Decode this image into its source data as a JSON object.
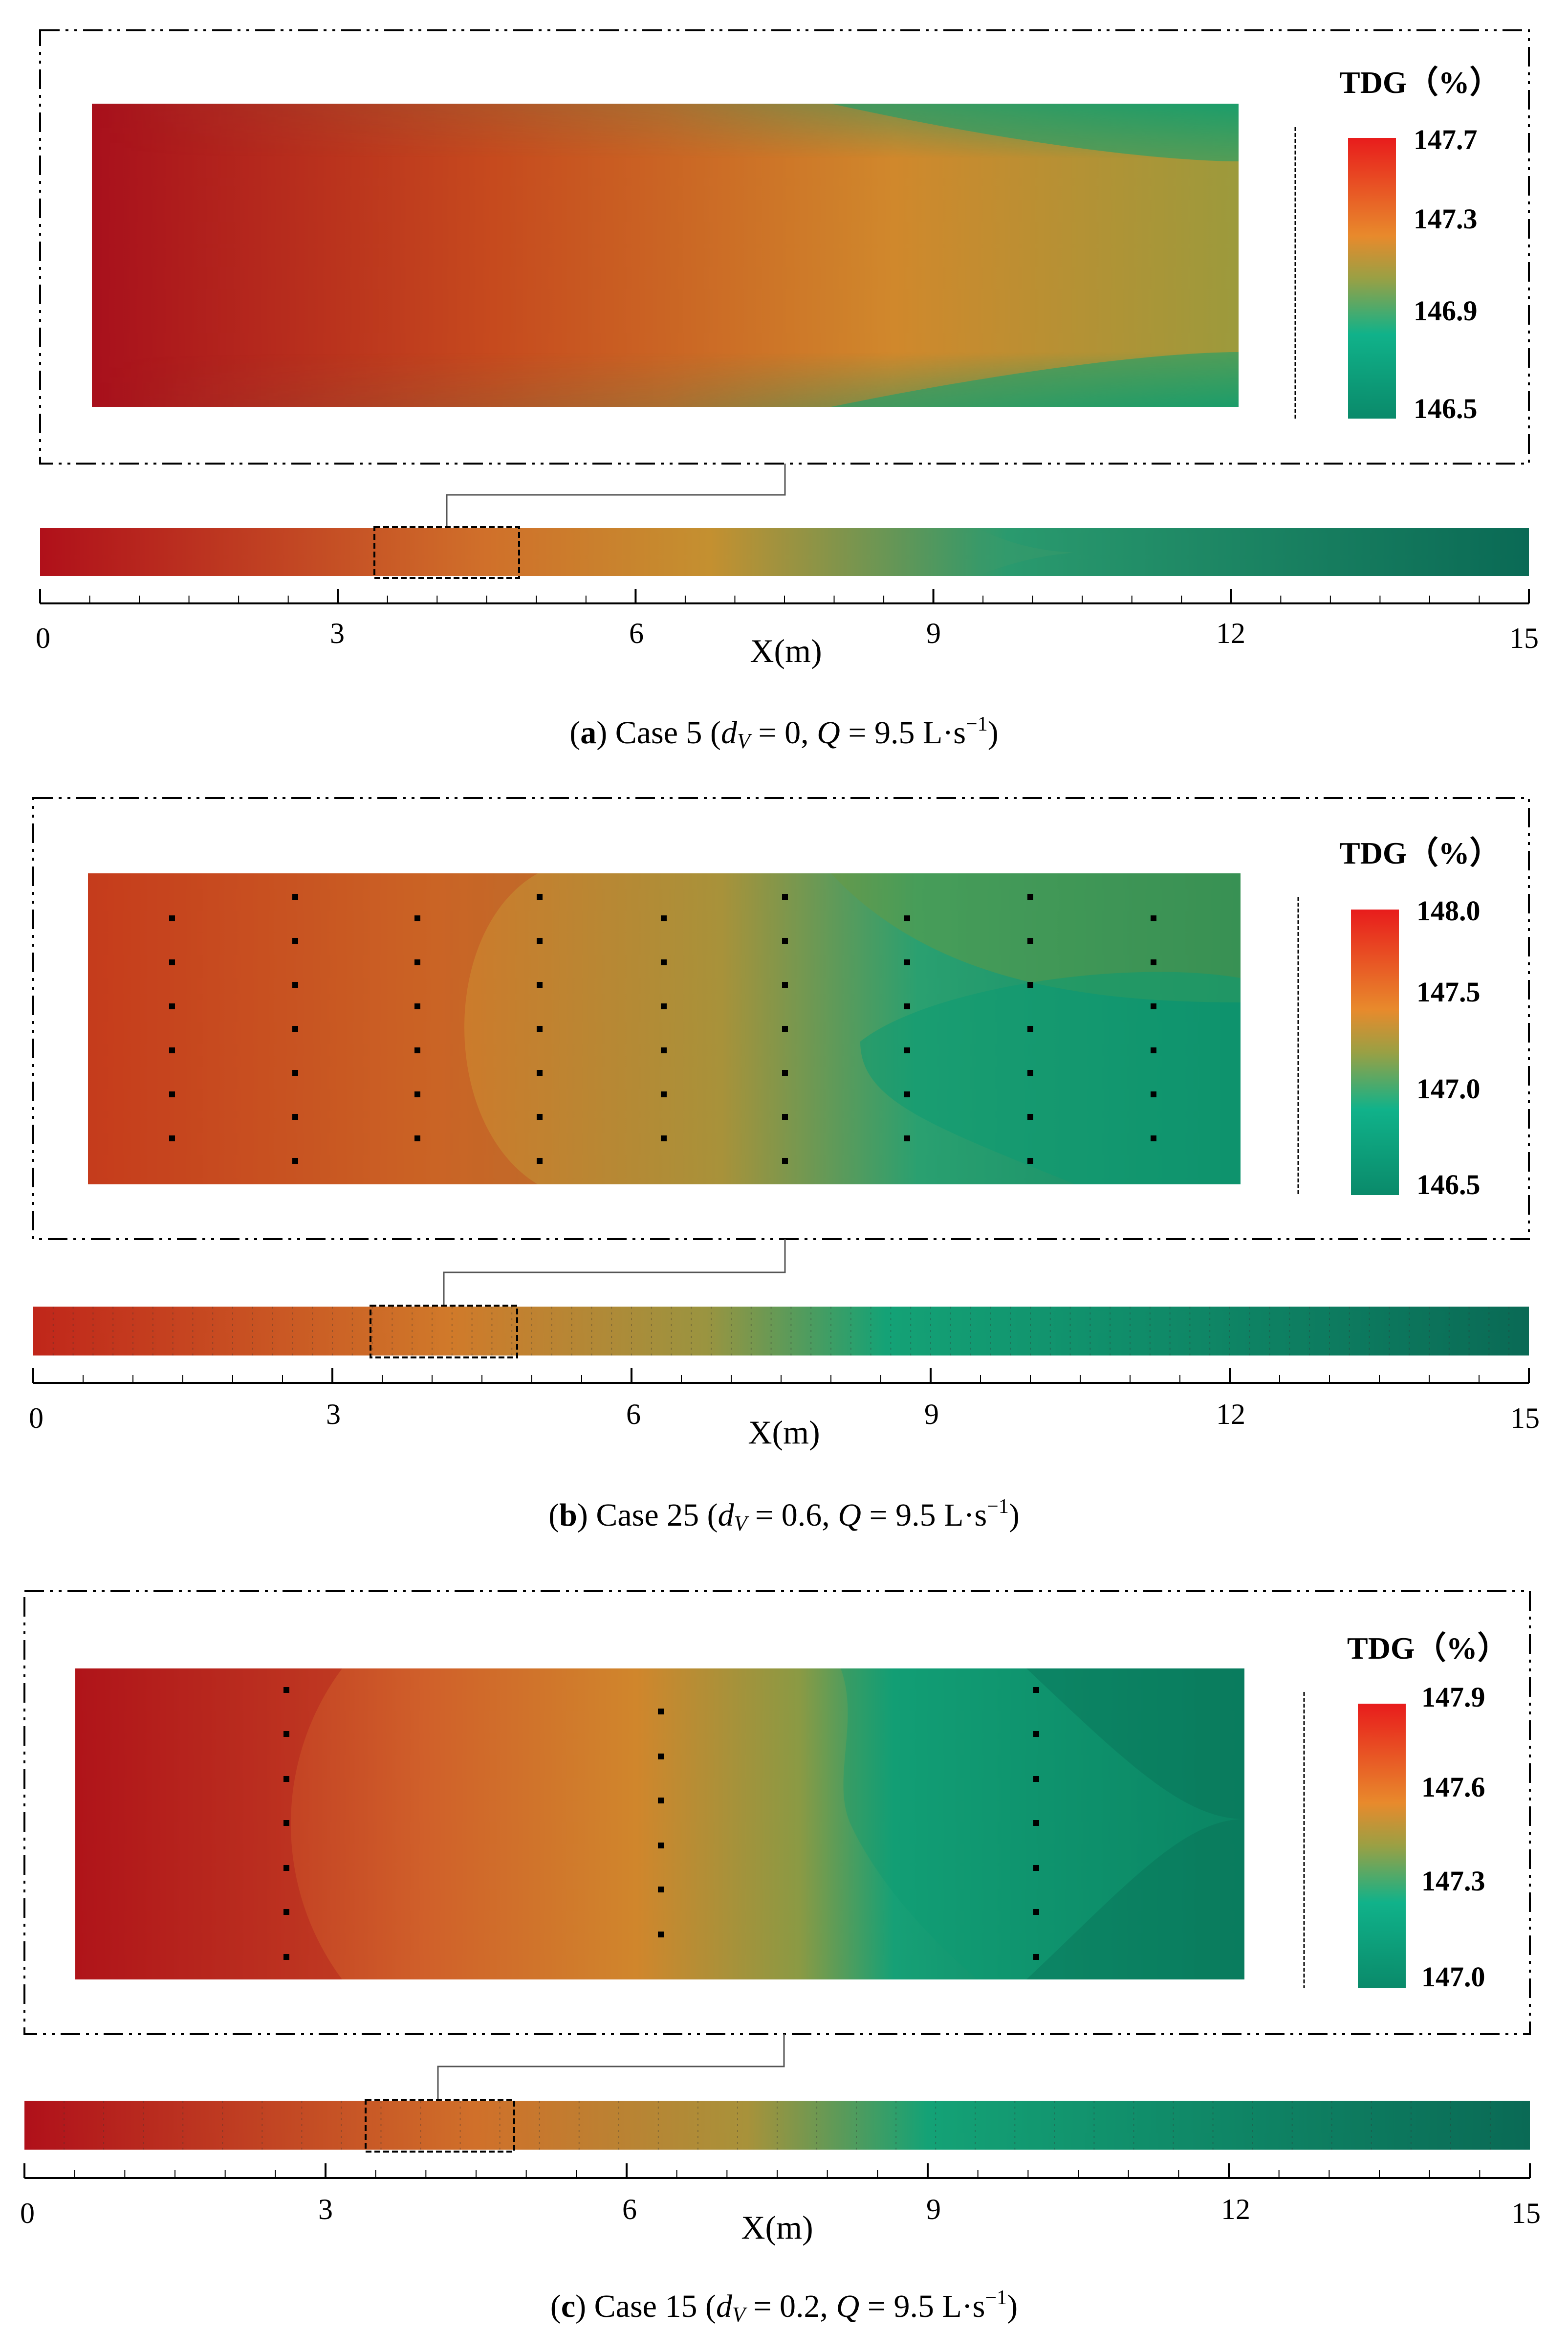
{
  "panels": [
    {
      "id": "a",
      "caption": {
        "letter": "a",
        "prefix": "(",
        "close": ") Case 5 (",
        "dv_sym": "d",
        "dv_sub": "V",
        "dv_eq": " = 0, ",
        "q_sym": "Q",
        "q_eq": " = 9.5 L·s",
        "q_exp": "−1",
        "end": ")"
      },
      "legend": {
        "title": "TDG（%）",
        "ticks": [
          "147.7",
          "147.3",
          "146.9",
          "146.5"
        ]
      },
      "axis": {
        "label": "X(m)",
        "ticks": [
          "0",
          "3",
          "6",
          "9",
          "12",
          "15"
        ]
      }
    },
    {
      "id": "b",
      "caption": {
        "letter": "b",
        "prefix": "(",
        "close": ") Case 25 (",
        "dv_sym": "d",
        "dv_sub": "V",
        "dv_eq": " = 0.6, ",
        "q_sym": "Q",
        "q_eq": " = 9.5 L·s",
        "q_exp": "−1",
        "end": ")"
      },
      "legend": {
        "title": "TDG（%）",
        "ticks": [
          "148.0",
          "147.5",
          "147.0",
          "146.5"
        ]
      },
      "axis": {
        "label": "X(m)",
        "ticks": [
          "0",
          "3",
          "6",
          "9",
          "12",
          "15"
        ]
      }
    },
    {
      "id": "c",
      "caption": {
        "letter": "c",
        "prefix": "(",
        "close": ") Case 15 (",
        "dv_sym": "d",
        "dv_sub": "V",
        "dv_eq": " = 0.2, ",
        "q_sym": "Q",
        "q_eq": " = 9.5 L·s",
        "q_exp": "−1",
        "end": ")"
      },
      "legend": {
        "title": "TDG（%）",
        "ticks": [
          "147.9",
          "147.6",
          "147.3",
          "147.0"
        ]
      },
      "axis": {
        "label": "X(m)",
        "ticks": [
          "0",
          "3",
          "6",
          "9",
          "12",
          "15"
        ]
      }
    }
  ],
  "colors": {
    "red": "#b0101a",
    "orange": "#d7822a",
    "green": "#12a07a",
    "dark_green": "#0a6a55"
  }
}
